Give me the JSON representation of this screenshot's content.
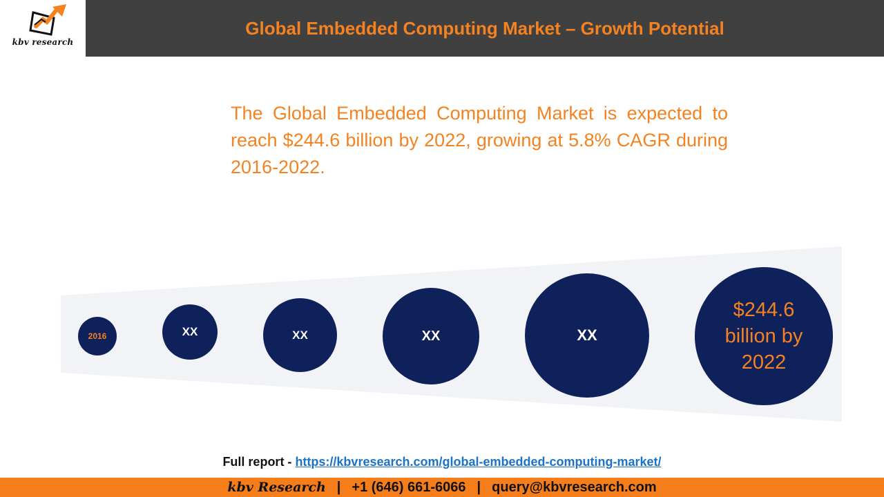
{
  "brand": {
    "logo_text": "kbv research",
    "logo_icon": "chart-arrow-icon",
    "accent_color": "#f58220",
    "dark_color": "#404040",
    "circle_color": "#0f215a"
  },
  "header": {
    "title": "Global Embedded Computing Market – Growth Potential"
  },
  "description": "The Global Embedded Computing Market is expected to reach $244.6 billion by 2022, growing at 5.8% CAGR during 2016-2022.",
  "growth_circles": [
    {
      "label": "2016"
    },
    {
      "label": "XX"
    },
    {
      "label": "XX"
    },
    {
      "label": "XX"
    },
    {
      "label": "XX"
    },
    {
      "label": "$244.6 billion by 2022"
    }
  ],
  "report": {
    "prefix": "Full report - ",
    "link_text": "https://kbvresearch.com/global-embedded-computing-market/"
  },
  "footer": {
    "brand": "kbv Research",
    "separator": "|",
    "phone": "+1 (646) 661-6066",
    "email": "query@kbvresearch.com"
  }
}
